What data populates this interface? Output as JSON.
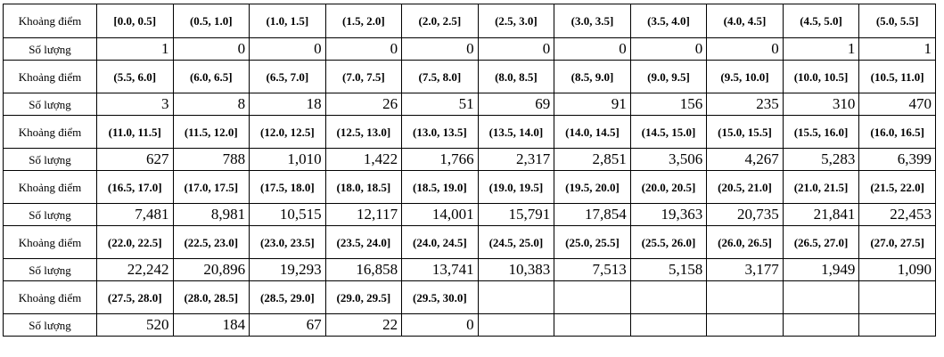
{
  "table": {
    "groups": [
      {
        "label_row": "Khoảng điểm",
        "count_row": "Số lượng",
        "intervals": [
          "[0.0, 0.5]",
          "(0.5, 1.0]",
          "(1.0, 1.5]",
          "(1.5, 2.0]",
          "(2.0, 2.5]",
          "(2.5, 3.0]",
          "(3.0, 3.5]",
          "(3.5, 4.0]",
          "(4.0, 4.5]",
          "(4.5, 5.0]",
          "(5.0, 5.5]"
        ],
        "counts": [
          "1",
          "0",
          "0",
          "0",
          "0",
          "0",
          "0",
          "0",
          "0",
          "1",
          "1"
        ]
      },
      {
        "label_row": "Khoảng điểm",
        "count_row": "Số lượng",
        "intervals": [
          "(5.5, 6.0]",
          "(6.0, 6.5]",
          "(6.5, 7.0]",
          "(7.0, 7.5]",
          "(7.5, 8.0]",
          "(8.0, 8.5]",
          "(8.5, 9.0]",
          "(9.0, 9.5]",
          "(9.5, 10.0]",
          "(10.0, 10.5]",
          "(10.5, 11.0]"
        ],
        "counts": [
          "3",
          "8",
          "18",
          "26",
          "51",
          "69",
          "91",
          "156",
          "235",
          "310",
          "470"
        ]
      },
      {
        "label_row": "Khoảng điểm",
        "count_row": "Số lượng",
        "intervals": [
          "(11.0, 11.5]",
          "(11.5, 12.0]",
          "(12.0, 12.5]",
          "(12.5, 13.0]",
          "(13.0, 13.5]",
          "(13.5, 14.0]",
          "(14.0, 14.5]",
          "(14.5, 15.0]",
          "(15.0, 15.5]",
          "(15.5, 16.0]",
          "(16.0, 16.5]"
        ],
        "counts": [
          "627",
          "788",
          "1,010",
          "1,422",
          "1,766",
          "2,317",
          "2,851",
          "3,506",
          "4,267",
          "5,283",
          "6,399"
        ]
      },
      {
        "label_row": "Khoảng điểm",
        "count_row": "Số lượng",
        "intervals": [
          "(16.5, 17.0]",
          "(17.0, 17.5]",
          "(17.5, 18.0]",
          "(18.0, 18.5]",
          "(18.5, 19.0]",
          "(19.0, 19.5]",
          "(19.5, 20.0]",
          "(20.0, 20.5]",
          "(20.5, 21.0]",
          "(21.0, 21.5]",
          "(21.5, 22.0]"
        ],
        "counts": [
          "7,481",
          "8,981",
          "10,515",
          "12,117",
          "14,001",
          "15,791",
          "17,854",
          "19,363",
          "20,735",
          "21,841",
          "22,453"
        ]
      },
      {
        "label_row": "Khoảng điểm",
        "count_row": "Số lượng",
        "intervals": [
          "(22.0, 22.5]",
          "(22.5, 23.0]",
          "(23.0, 23.5]",
          "(23.5, 24.0]",
          "(24.0, 24.5]",
          "(24.5, 25.0]",
          "(25.0, 25.5]",
          "(25.5, 26.0]",
          "(26.0, 26.5]",
          "(26.5, 27.0]",
          "(27.0, 27.5]"
        ],
        "counts": [
          "22,242",
          "20,896",
          "19,293",
          "16,858",
          "13,741",
          "10,383",
          "7,513",
          "5,158",
          "3,177",
          "1,949",
          "1,090"
        ]
      },
      {
        "label_row": "Khoảng điểm",
        "count_row": "Số lượng",
        "intervals": [
          "(27.5, 28.0]",
          "(28.0, 28.5]",
          "(28.5, 29.0]",
          "(29.0, 29.5]",
          "(29.5, 30.0]"
        ],
        "counts": [
          "520",
          "184",
          "67",
          "22",
          "0"
        ]
      }
    ]
  }
}
